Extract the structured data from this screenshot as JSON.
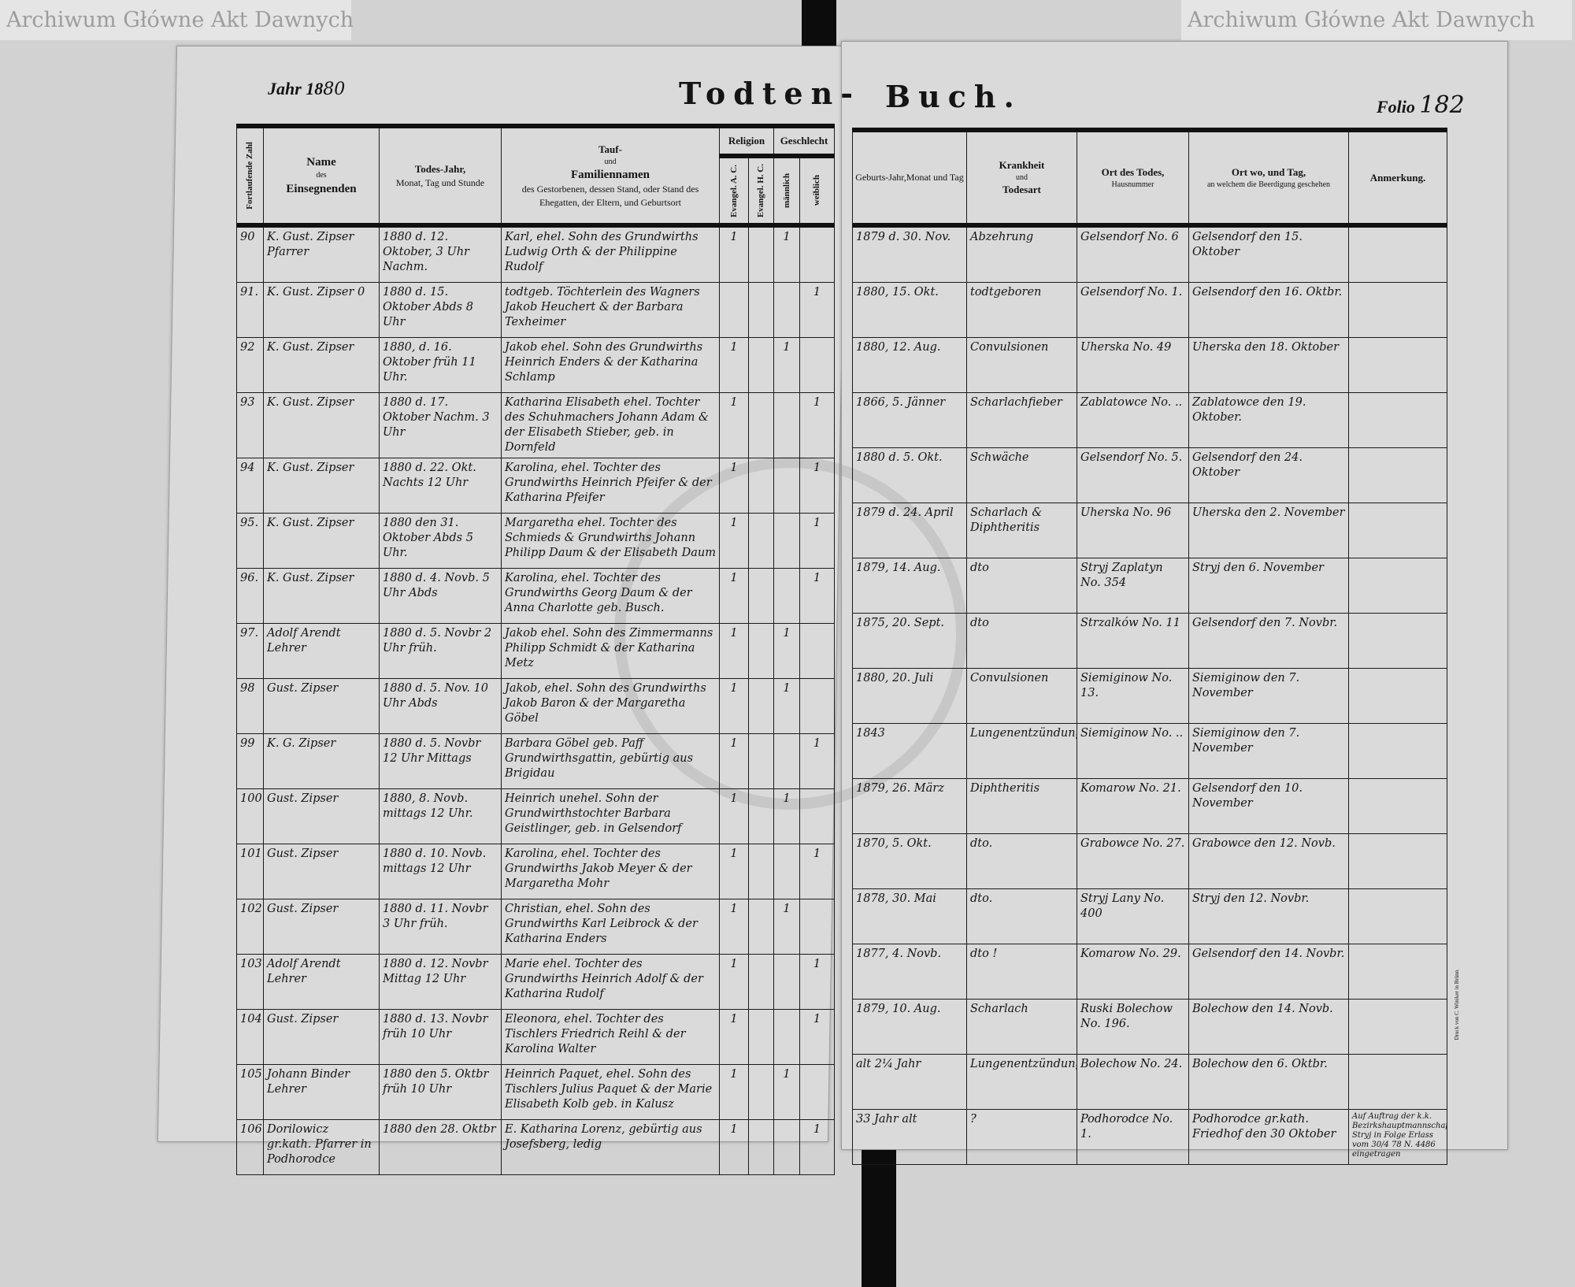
{
  "header": {
    "year_label": "Jahr 18",
    "year_value": "80",
    "title_left": "Todten-",
    "title_right": "Buch.",
    "folio_label": "Folio",
    "folio_value": "182"
  },
  "left_columns": {
    "seq": "Fortlaufende Zahl",
    "name_1": "Name",
    "name_2": "des",
    "name_3": "Einsegnenden",
    "death_1": "Todes-Jahr,",
    "death_2": "Monat, Tag und Stunde",
    "family_1": "Tauf-",
    "family_2": "und",
    "family_3": "Familiennamen",
    "family_4": "des Gestorbenen, dessen Stand, oder Stand des Ehegatten, der Eltern, und Geburtsort",
    "religion": "Religion",
    "rel_ac": "Evangel. A. C.",
    "rel_hc": "Evangel. H. C.",
    "sex": "Geschlecht",
    "sex_m": "männlich",
    "sex_w": "weiblich"
  },
  "right_columns": {
    "birth_1": "Geburts-Jahr,",
    "birth_2": "Monat und Tag",
    "disease_1": "Krankheit",
    "disease_2": "und",
    "disease_3": "Todesart",
    "place_1": "Ort des Todes,",
    "place_2": "Hausnummer",
    "burial_1": "Ort wo, und Tag,",
    "burial_2": "an welchem die Beerdigung geschehen",
    "remark": "Anmerkung."
  },
  "rows": [
    {
      "num": "90",
      "officiant": "K. Gust. Zipser Pfarrer",
      "death": "1880 d. 12. Oktober, 3 Uhr Nachm.",
      "family": "Karl, ehel. Sohn des Grundwirths Ludwig Orth & der Philippine Rudolf",
      "ac": "1",
      "hc": "",
      "m": "1",
      "w": "",
      "birth": "1879 d. 30. Nov.",
      "disease": "Abzehrung",
      "place": "Gelsendorf No. 6",
      "burial": "Gelsendorf den 15. Oktober",
      "remark": ""
    },
    {
      "num": "91.",
      "officiant": "K. Gust. Zipser 0",
      "death": "1880 d. 15. Oktober Abds 8 Uhr",
      "family": "todtgeb. Töchterlein des Wagners Jakob Heuchert & der Barbara Texheimer",
      "ac": "",
      "hc": "",
      "m": "",
      "w": "1",
      "birth": "1880, 15. Okt.",
      "disease": "todtgeboren",
      "place": "Gelsendorf No. 1.",
      "burial": "Gelsendorf den 16. Oktbr.",
      "remark": ""
    },
    {
      "num": "92",
      "officiant": "K. Gust. Zipser",
      "death": "1880, d. 16. Oktober früh 11 Uhr.",
      "family": "Jakob ehel. Sohn des Grundwirths Heinrich Enders & der Katharina Schlamp",
      "ac": "1",
      "hc": "",
      "m": "1",
      "w": "",
      "birth": "1880, 12. Aug.",
      "disease": "Convulsionen",
      "place": "Uherska No. 49",
      "burial": "Uherska den 18. Oktober",
      "remark": ""
    },
    {
      "num": "93",
      "officiant": "K. Gust. Zipser",
      "death": "1880 d. 17. Oktober Nachm. 3 Uhr",
      "family": "Katharina Elisabeth ehel. Tochter des Schuhmachers Johann Adam & der Elisabeth Stieber, geb. in Dornfeld",
      "ac": "1",
      "hc": "",
      "m": "",
      "w": "1",
      "birth": "1866, 5. Jänner",
      "disease": "Scharlachfieber",
      "place": "Zablatowce No. ..",
      "burial": "Zablatowce den 19. Oktober.",
      "remark": ""
    },
    {
      "num": "94",
      "officiant": "K. Gust. Zipser",
      "death": "1880 d. 22. Okt. Nachts 12 Uhr",
      "family": "Karolina, ehel. Tochter des Grundwirths Heinrich Pfeifer & der Katharina Pfeifer",
      "ac": "1",
      "hc": "",
      "m": "",
      "w": "1",
      "birth": "1880 d. 5. Okt.",
      "disease": "Schwäche",
      "place": "Gelsendorf No. 5.",
      "burial": "Gelsendorf den 24. Oktober",
      "remark": ""
    },
    {
      "num": "95.",
      "officiant": "K. Gust. Zipser",
      "death": "1880 den 31. Oktober Abds 5 Uhr.",
      "family": "Margaretha ehel. Tochter des Schmieds & Grundwirths Johann Philipp Daum & der Elisabeth Daum",
      "ac": "1",
      "hc": "",
      "m": "",
      "w": "1",
      "birth": "1879 d. 24. April",
      "disease": "Scharlach & Diphtheritis",
      "place": "Uherska No. 96",
      "burial": "Uherska den 2. November",
      "remark": ""
    },
    {
      "num": "96.",
      "officiant": "K. Gust. Zipser",
      "death": "1880 d. 4. Novb. 5 Uhr Abds",
      "family": "Karolina, ehel. Tochter des Grundwirths Georg Daum & der Anna Charlotte geb. Busch.",
      "ac": "1",
      "hc": "",
      "m": "",
      "w": "1",
      "birth": "1879, 14. Aug.",
      "disease": "dto",
      "place": "Stryj Zaplatyn No. 354",
      "burial": "Stryj den 6. November",
      "remark": ""
    },
    {
      "num": "97.",
      "officiant": "Adolf Arendt Lehrer",
      "death": "1880 d. 5. Novbr 2 Uhr früh.",
      "family": "Jakob ehel. Sohn des Zimmermanns Philipp Schmidt & der Katharina Metz",
      "ac": "1",
      "hc": "",
      "m": "1",
      "w": "",
      "birth": "1875, 20. Sept.",
      "disease": "dto",
      "place": "Strzalków No. 11",
      "burial": "Gelsendorf den 7. Novbr.",
      "remark": ""
    },
    {
      "num": "98",
      "officiant": "Gust. Zipser",
      "death": "1880 d. 5. Nov. 10 Uhr Abds",
      "family": "Jakob, ehel. Sohn des Grundwirths Jakob Baron & der Margaretha Göbel",
      "ac": "1",
      "hc": "",
      "m": "1",
      "w": "",
      "birth": "1880, 20. Juli",
      "disease": "Convulsionen",
      "place": "Siemiginow No. 13.",
      "burial": "Siemiginow den 7. November",
      "remark": ""
    },
    {
      "num": "99",
      "officiant": "K. G. Zipser",
      "death": "1880 d. 5. Novbr 12 Uhr Mittags",
      "family": "Barbara Göbel geb. Paff Grundwirthsgattin, gebürtig aus Brigidau",
      "ac": "1",
      "hc": "",
      "m": "",
      "w": "1",
      "birth": "1843",
      "disease": "Lungenentzündung",
      "place": "Siemiginow No. ..",
      "burial": "Siemiginow den 7. November",
      "remark": ""
    },
    {
      "num": "100",
      "officiant": "Gust. Zipser",
      "death": "1880, 8. Novb. mittags 12 Uhr.",
      "family": "Heinrich unehel. Sohn der Grundwirthstochter Barbara Geistlinger, geb. in Gelsendorf",
      "ac": "1",
      "hc": "",
      "m": "1",
      "w": "",
      "birth": "1879, 26. März",
      "disease": "Diphtheritis",
      "place": "Komarow No. 21.",
      "burial": "Gelsendorf den 10. November",
      "remark": ""
    },
    {
      "num": "101",
      "officiant": "Gust. Zipser",
      "death": "1880 d. 10. Novb. mittags 12 Uhr",
      "family": "Karolina, ehel. Tochter des Grundwirths Jakob Meyer & der Margaretha Mohr",
      "ac": "1",
      "hc": "",
      "m": "",
      "w": "1",
      "birth": "1870, 5. Okt.",
      "disease": "dto.",
      "place": "Grabowce No. 27.",
      "burial": "Grabowce den 12. Novb.",
      "remark": ""
    },
    {
      "num": "102",
      "officiant": "Gust. Zipser",
      "death": "1880 d. 11. Novbr 3 Uhr früh.",
      "family": "Christian, ehel. Sohn des Grundwirths Karl Leibrock & der Katharina Enders",
      "ac": "1",
      "hc": "",
      "m": "1",
      "w": "",
      "birth": "1878, 30. Mai",
      "disease": "dto.",
      "place": "Stryj Lany No. 400",
      "burial": "Stryj den 12. Novbr.",
      "remark": ""
    },
    {
      "num": "103",
      "officiant": "Adolf Arendt Lehrer",
      "death": "1880 d. 12. Novbr Mittag 12 Uhr",
      "family": "Marie ehel. Tochter des Grundwirths Heinrich Adolf & der Katharina Rudolf",
      "ac": "1",
      "hc": "",
      "m": "",
      "w": "1",
      "birth": "1877, 4. Novb.",
      "disease": "dto !",
      "place": "Komarow No. 29.",
      "burial": "Gelsendorf den 14. Novbr.",
      "remark": ""
    },
    {
      "num": "104.",
      "officiant": "Gust. Zipser",
      "death": "1880 d. 13. Novbr früh 10 Uhr",
      "family": "Eleonora, ehel. Tochter des Tischlers Friedrich Reihl & der Karolina Walter",
      "ac": "1",
      "hc": "",
      "m": "",
      "w": "1",
      "birth": "1879, 10. Aug.",
      "disease": "Scharlach",
      "place": "Ruski Bolechow No. 196.",
      "burial": "Bolechow den 14. Novb.",
      "remark": ""
    },
    {
      "num": "105",
      "officiant": "Johann Binder Lehrer",
      "death": "1880 den 5. Oktbr früh 10 Uhr",
      "family": "Heinrich Paquet, ehel. Sohn des Tischlers Julius Paquet & der Marie Elisabeth Kolb geb. in Kalusz",
      "ac": "1",
      "hc": "",
      "m": "1",
      "w": "",
      "birth": "alt 2¼ Jahr",
      "disease": "Lungenentzündung",
      "place": "Bolechow No. 24.",
      "burial": "Bolechow den 6. Oktbr.",
      "remark": ""
    },
    {
      "num": "106",
      "officiant": "Dorilowicz gr.kath. Pfarrer in Podhorodce",
      "death": "1880 den 28. Oktbr",
      "family": "E. Katharina Lorenz, gebürtig aus Josefsberg, ledig",
      "ac": "1",
      "hc": "",
      "m": "",
      "w": "1",
      "birth": "33 Jahr alt",
      "disease": "?",
      "place": "Podhorodce No. 1.",
      "burial": "Podhorodce gr.kath. Friedhof den 30 Oktober",
      "remark": "Auf Auftrag der k.k. Bezirkshauptmannschaft Stryj in Folge Erlass vom 30/4 78 N. 4486 eingetragen"
    }
  ],
  "watermark_text": "Archiwum Główne Akt Dawnych",
  "printer_note": "Druck von C. Winiker in Brünn."
}
